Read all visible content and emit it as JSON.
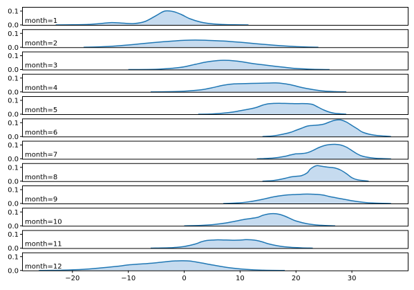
{
  "chart_data": {
    "type": "area",
    "subtype": "ridgeline-kde",
    "x_ticks": [
      -20,
      -10,
      0,
      10,
      20,
      30
    ],
    "x_range": [
      -29,
      40
    ],
    "y_range": [
      0,
      0.13
    ],
    "y_ticks": [
      0.0,
      0.1
    ],
    "y_tick_labels": [
      "0.0",
      "0.1"
    ],
    "fill_color": "#c6dbef",
    "line_color": "#1f77b4",
    "grid": false,
    "legend": "none",
    "panels": [
      {
        "label": "month=1",
        "x": [
          -23,
          -20,
          -17,
          -15,
          -13,
          -11,
          -9,
          -7,
          -5,
          -3.5,
          -2,
          -0.5,
          1,
          3,
          5,
          7,
          9,
          11.5
        ],
        "y": [
          0,
          0.001,
          0.004,
          0.01,
          0.017,
          0.013,
          0.01,
          0.025,
          0.068,
          0.1,
          0.097,
          0.075,
          0.045,
          0.02,
          0.008,
          0.003,
          0.001,
          0
        ]
      },
      {
        "label": "month=2",
        "x": [
          -18,
          -15,
          -12,
          -9,
          -6,
          -3,
          0,
          2,
          4,
          7,
          10,
          13,
          16,
          19,
          21,
          24
        ],
        "y": [
          0,
          0.003,
          0.01,
          0.02,
          0.032,
          0.042,
          0.05,
          0.052,
          0.05,
          0.045,
          0.036,
          0.025,
          0.015,
          0.007,
          0.003,
          0
        ]
      },
      {
        "label": "month=3",
        "x": [
          -10,
          -5,
          -2,
          0,
          2,
          4,
          6,
          7,
          8,
          10,
          12,
          14,
          16,
          18,
          20,
          23,
          26
        ],
        "y": [
          0,
          0.002,
          0.01,
          0.02,
          0.038,
          0.055,
          0.065,
          0.067,
          0.066,
          0.058,
          0.045,
          0.035,
          0.025,
          0.016,
          0.008,
          0.002,
          0
        ]
      },
      {
        "label": "month=4",
        "x": [
          -6,
          -3,
          0,
          3,
          5,
          7,
          9,
          11,
          13,
          15,
          16,
          17,
          19,
          21,
          23,
          25,
          27,
          29
        ],
        "y": [
          0,
          0.001,
          0.005,
          0.015,
          0.03,
          0.048,
          0.058,
          0.06,
          0.062,
          0.064,
          0.065,
          0.064,
          0.052,
          0.032,
          0.017,
          0.006,
          0.002,
          0
        ]
      },
      {
        "label": "month=5",
        "x": [
          2.5,
          5,
          8,
          10,
          12,
          13,
          14,
          15,
          16,
          17,
          18,
          19,
          20,
          21,
          22,
          23,
          24,
          25,
          26,
          27,
          29
        ],
        "y": [
          0,
          0.002,
          0.012,
          0.025,
          0.04,
          0.05,
          0.065,
          0.075,
          0.078,
          0.079,
          0.078,
          0.077,
          0.076,
          0.077,
          0.076,
          0.07,
          0.05,
          0.03,
          0.015,
          0.006,
          0
        ]
      },
      {
        "label": "month=6",
        "x": [
          14,
          16,
          18,
          19,
          20,
          21,
          22,
          23,
          24,
          25,
          26,
          27,
          28,
          29,
          30,
          31,
          32,
          34,
          37
        ],
        "y": [
          0,
          0.005,
          0.02,
          0.03,
          0.045,
          0.06,
          0.075,
          0.08,
          0.083,
          0.09,
          0.105,
          0.118,
          0.12,
          0.105,
          0.08,
          0.055,
          0.03,
          0.01,
          0
        ]
      },
      {
        "label": "month=7",
        "x": [
          13,
          16,
          18,
          19,
          20,
          21,
          22,
          23,
          24,
          25,
          26,
          27,
          28,
          29,
          30,
          31,
          32,
          34,
          37
        ],
        "y": [
          0,
          0.006,
          0.018,
          0.028,
          0.036,
          0.038,
          0.044,
          0.06,
          0.08,
          0.095,
          0.103,
          0.105,
          0.1,
          0.085,
          0.06,
          0.035,
          0.018,
          0.005,
          0
        ]
      },
      {
        "label": "month=8",
        "x": [
          14,
          16,
          18,
          19,
          20,
          21,
          22,
          22.5,
          23,
          23.5,
          24,
          25,
          26,
          27,
          28,
          29,
          30,
          31,
          33
        ],
        "y": [
          0,
          0.005,
          0.02,
          0.03,
          0.035,
          0.04,
          0.06,
          0.085,
          0.1,
          0.11,
          0.112,
          0.105,
          0.1,
          0.095,
          0.08,
          0.055,
          0.025,
          0.01,
          0
        ]
      },
      {
        "label": "month=9",
        "x": [
          7,
          10,
          12,
          14,
          16,
          18,
          20,
          21,
          22,
          23,
          24,
          25,
          26,
          28,
          30,
          32,
          34,
          37
        ],
        "y": [
          0,
          0.005,
          0.015,
          0.03,
          0.048,
          0.06,
          0.065,
          0.067,
          0.068,
          0.067,
          0.065,
          0.06,
          0.05,
          0.035,
          0.02,
          0.009,
          0.003,
          0
        ]
      },
      {
        "label": "month=10",
        "x": [
          0,
          3,
          5,
          7,
          9,
          11,
          13,
          14,
          15,
          16,
          17,
          18,
          19,
          20,
          22,
          24,
          27
        ],
        "y": [
          0,
          0.003,
          0.008,
          0.018,
          0.032,
          0.048,
          0.06,
          0.075,
          0.085,
          0.088,
          0.083,
          0.07,
          0.052,
          0.035,
          0.015,
          0.005,
          0
        ]
      },
      {
        "label": "month=11",
        "x": [
          -6,
          -2,
          0,
          2,
          3,
          4,
          5,
          6,
          7,
          8,
          9,
          10,
          11,
          12,
          13,
          14,
          15,
          17,
          19,
          21,
          23
        ],
        "y": [
          0,
          0.004,
          0.012,
          0.03,
          0.045,
          0.055,
          0.058,
          0.06,
          0.059,
          0.058,
          0.057,
          0.058,
          0.061,
          0.06,
          0.055,
          0.045,
          0.032,
          0.015,
          0.006,
          0.002,
          0
        ]
      },
      {
        "label": "month=12",
        "x": [
          -26,
          -22,
          -18,
          -15,
          -12,
          -10,
          -8,
          -6,
          -4,
          -2,
          -0.5,
          1,
          3,
          5,
          8,
          11,
          14,
          18
        ],
        "y": [
          0,
          0.002,
          0.008,
          0.018,
          0.03,
          0.04,
          0.046,
          0.052,
          0.06,
          0.068,
          0.07,
          0.068,
          0.055,
          0.04,
          0.02,
          0.008,
          0.002,
          0
        ]
      }
    ]
  }
}
